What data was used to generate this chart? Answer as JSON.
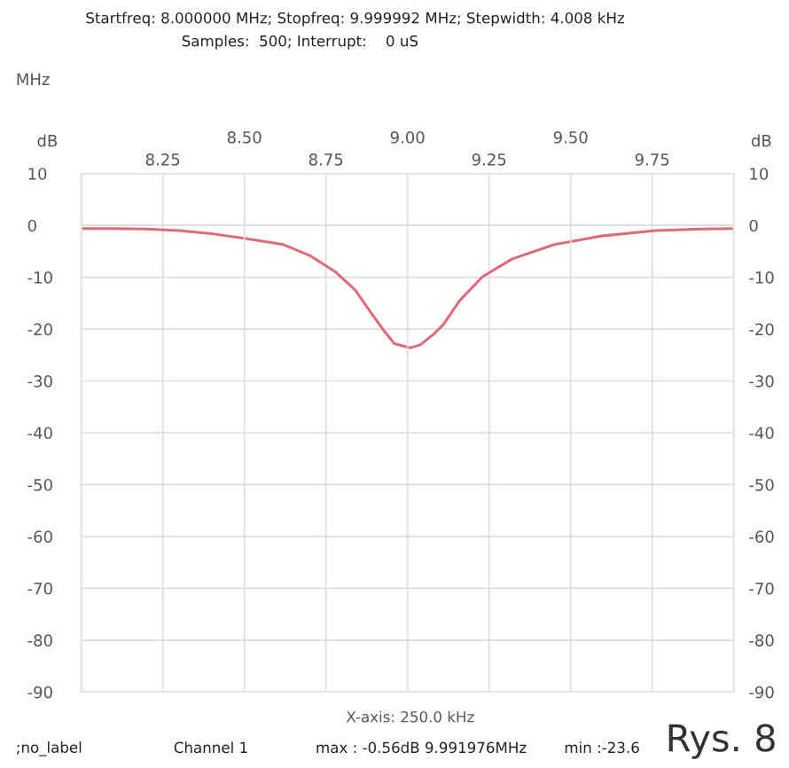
{
  "chart_data": {
    "type": "line",
    "xlabel": "MHz",
    "ylabel": "dB",
    "y2label": "dB",
    "annotations": [
      "Startfreq: 8.000000 MHz; Stopfreq: 9.999992 MHz; Stepwidth: 4.008 kHz",
      "Samples:  500; Interrupt:    0 uS",
      "X-axis: 250.0 kHz",
      ";no_label",
      "Channel 1",
      "max : -0.56dB 9.991976MHz",
      "min :-23.6",
      "Rys. 8"
    ],
    "x": [
      8.0,
      8.1,
      8.2,
      8.3,
      8.4,
      8.5,
      8.62,
      8.7,
      8.78,
      8.84,
      8.89,
      8.93,
      8.96,
      9.0,
      9.01,
      9.04,
      9.08,
      9.11,
      9.16,
      9.23,
      9.32,
      9.45,
      9.6,
      9.76,
      9.9,
      10.0
    ],
    "series": [
      {
        "color": "#e06a78",
        "values": [
          -0.6,
          -0.6,
          -0.7,
          -1.0,
          -1.6,
          -2.5,
          -3.7,
          -5.8,
          -9.0,
          -12.5,
          -17.0,
          -20.5,
          -22.8,
          -23.5,
          -23.6,
          -23.0,
          -21.0,
          -19.1,
          -14.5,
          -9.9,
          -6.5,
          -3.7,
          -2.0,
          -1.0,
          -0.7,
          -0.6
        ]
      }
    ],
    "xlim": [
      8.0,
      10.0
    ],
    "xticks": [
      8.25,
      8.75,
      9.25,
      9.75
    ],
    "x2lim": [
      8.0,
      10.0
    ],
    "x2ticks": [
      {
        "value": 8.5,
        "label": "8.50"
      },
      {
        "value": 9.0,
        "label": "9.00"
      },
      {
        "value": 9.5,
        "label": "9.50"
      }
    ],
    "ylim": [
      -90,
      10
    ],
    "yticks": [
      10,
      0,
      -10,
      -20,
      -30,
      -40,
      -50,
      -60,
      -70,
      -80,
      -90
    ],
    "y2lim": [
      -90,
      10
    ],
    "y2ticks": [
      10,
      0,
      -10,
      -20,
      -30,
      -40,
      -50,
      -60,
      -70,
      -80,
      -90
    ],
    "grid": true,
    "legend": false,
    "marker": "none",
    "line_style": "solid"
  }
}
